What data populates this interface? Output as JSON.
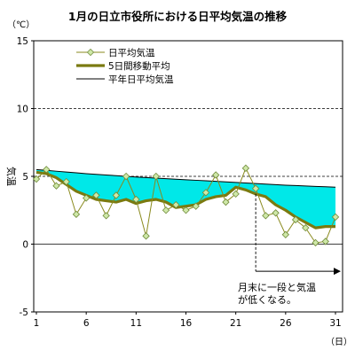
{
  "chart_data": {
    "type": "line",
    "title": "1月の日立市役所における日平均気温の推移",
    "unit_label": "（℃）",
    "ylabel": "気温",
    "x_unit_label": "（日）",
    "ylim": [
      -5,
      15
    ],
    "xlim": [
      1,
      31
    ],
    "y_ticks": [
      -5,
      0,
      5,
      10,
      15
    ],
    "x_ticks": [
      1,
      6,
      11,
      16,
      21,
      26,
      31
    ],
    "grid": "dashed horizontal at 5, 10 and 15",
    "legend_position": "top-left",
    "legend": [
      {
        "label": "日平均気温",
        "style": "marker-line"
      },
      {
        "label": "5日間移動平均",
        "style": "thick-line"
      },
      {
        "label": "平年日平均気温",
        "style": "thin-line"
      }
    ],
    "series": [
      {
        "name": "日平均気温",
        "color": "#8a8a1e",
        "marker_color": "#cfe8a8",
        "x": [
          1,
          2,
          3,
          4,
          5,
          6,
          7,
          8,
          9,
          10,
          11,
          12,
          13,
          14,
          15,
          16,
          17,
          18,
          19,
          20,
          21,
          22,
          23,
          24,
          25,
          26,
          27,
          28,
          29,
          30,
          31
        ],
        "values": [
          4.8,
          5.5,
          4.3,
          4.6,
          2.2,
          3.4,
          3.6,
          2.1,
          3.6,
          5.0,
          3.3,
          0.6,
          5.0,
          2.5,
          2.9,
          2.5,
          2.8,
          3.8,
          5.1,
          3.1,
          3.7,
          5.6,
          4.1,
          2.1,
          2.3,
          0.7,
          1.8,
          1.2,
          0.1,
          0.2,
          2.0
        ]
      },
      {
        "name": "5日間移動平均",
        "color": "#7a7a10",
        "x": [
          1,
          2,
          3,
          4,
          5,
          6,
          7,
          8,
          9,
          10,
          11,
          12,
          13,
          14,
          15,
          16,
          17,
          18,
          19,
          20,
          21,
          22,
          23,
          24,
          25,
          26,
          27,
          28,
          29,
          30,
          31
        ],
        "values": [
          5.3,
          5.2,
          4.9,
          4.4,
          3.9,
          3.6,
          3.3,
          3.2,
          3.1,
          3.3,
          3.0,
          3.2,
          3.3,
          3.1,
          2.7,
          2.8,
          2.9,
          3.3,
          3.5,
          3.6,
          4.2,
          4.0,
          3.7,
          3.5,
          2.9,
          2.5,
          2.0,
          1.6,
          1.2,
          1.3,
          1.3
        ]
      },
      {
        "name": "平年日平均気温",
        "color": "#000000",
        "x": [
          1,
          2,
          3,
          4,
          5,
          6,
          7,
          8,
          9,
          10,
          11,
          12,
          13,
          14,
          15,
          16,
          17,
          18,
          19,
          20,
          21,
          22,
          23,
          24,
          25,
          26,
          27,
          28,
          29,
          30,
          31
        ],
        "values": [
          5.5,
          5.44,
          5.38,
          5.32,
          5.26,
          5.2,
          5.15,
          5.1,
          5.05,
          5.0,
          4.95,
          4.91,
          4.87,
          4.83,
          4.79,
          4.75,
          4.71,
          4.67,
          4.63,
          4.59,
          4.55,
          4.51,
          4.47,
          4.43,
          4.39,
          4.35,
          4.32,
          4.29,
          4.26,
          4.23,
          4.2
        ]
      }
    ],
    "fill_between": {
      "upper": "平年日平均気温",
      "lower": "5日間移動平均",
      "color": "#00e8e8"
    },
    "annotation": {
      "lines": [
        "月末に一段と気温",
        "が低くなる。"
      ],
      "from_day": 23,
      "to_day": 31,
      "arrow": "right"
    }
  }
}
